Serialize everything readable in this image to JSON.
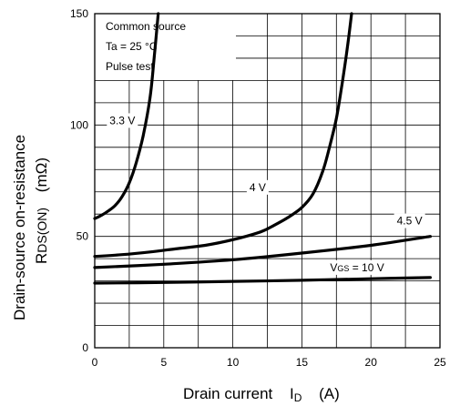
{
  "chart_data": {
    "type": "line",
    "xlabel": "Drain current",
    "xlabel_symbol": "I",
    "xlabel_symbol_sub": "D",
    "xlabel_unit": "(A)",
    "ylabel_line1": "Drain-source on-resistance",
    "ylabel_symbol": "R",
    "ylabel_symbol_sub": "DS(ON)",
    "ylabel_unit": "(mΩ)",
    "xlim": [
      0,
      25
    ],
    "ylim": [
      0,
      150
    ],
    "x_ticks": [
      "0",
      "5",
      "10",
      "15",
      "20",
      "25"
    ],
    "y_ticks": [
      "0",
      "50",
      "100",
      "150"
    ],
    "x_tick_values": [
      0,
      5,
      10,
      15,
      20,
      25
    ],
    "y_tick_values": [
      0,
      50,
      100,
      150
    ],
    "x_minor_step": 2.5,
    "y_minor_step": 10,
    "grid": true,
    "conditions": {
      "line1": "Common source",
      "line2": "Ta = 25 °C",
      "line3": "Pulse test"
    },
    "series": [
      {
        "name": "3.3 V",
        "x": [
          0,
          0.5,
          1.0,
          1.5,
          2.0,
          2.5,
          3.0,
          3.5,
          4.0,
          4.3,
          4.6
        ],
        "y": [
          58,
          59.5,
          61.5,
          64,
          68,
          74,
          83,
          95,
          112,
          130,
          150
        ]
      },
      {
        "name": "4 V",
        "x": [
          0,
          2,
          4,
          6,
          8,
          10,
          12,
          13,
          14,
          15,
          15.8,
          16.5,
          17.0,
          17.5,
          17.9,
          18.3,
          18.6
        ],
        "y": [
          41,
          41.8,
          43,
          44.5,
          46,
          48.5,
          52,
          55,
          58.5,
          63,
          69,
          79,
          90,
          103,
          118,
          135,
          150
        ]
      },
      {
        "name": "4.5 V",
        "x": [
          0,
          5,
          10,
          15,
          20,
          24.3
        ],
        "y": [
          36,
          37.5,
          39.5,
          42.5,
          46,
          50
        ]
      },
      {
        "name": "VGS = 10 V",
        "x": [
          0,
          5,
          10,
          15,
          20,
          24.3
        ],
        "y": [
          29,
          29.3,
          29.8,
          30.3,
          31,
          31.5
        ]
      }
    ],
    "labels": [
      {
        "text": "3.3 V",
        "x": 2.0,
        "y": 102
      },
      {
        "text": "4 V",
        "x": 11.8,
        "y": 72
      },
      {
        "text": "4.5 V",
        "x": 22.8,
        "y": 57
      },
      {
        "text": "V",
        "x": 19.0,
        "y": 36,
        "vgs": true
      }
    ]
  }
}
